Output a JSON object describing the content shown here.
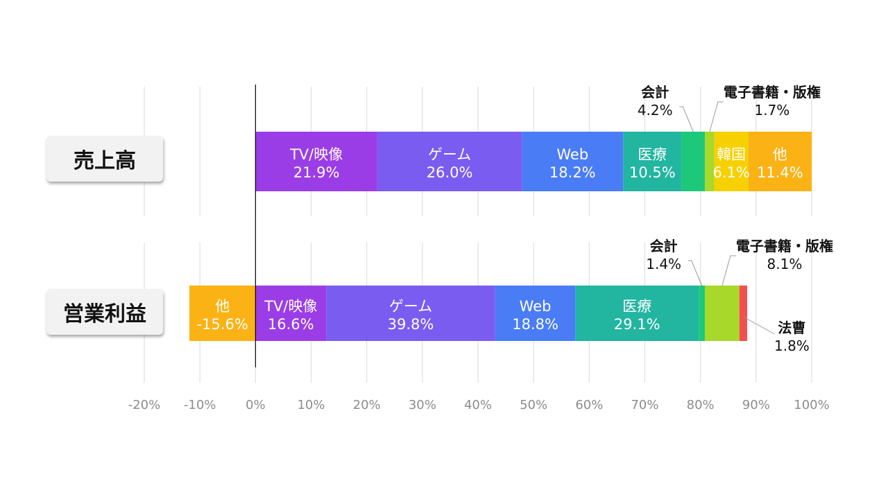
{
  "chart_data": {
    "type": "bar",
    "orientation": "horizontal",
    "stacked": true,
    "x_ticks": [
      "-20%",
      "-10%",
      "0%",
      "10%",
      "20%",
      "30%",
      "40%",
      "50%",
      "60%",
      "70%",
      "80%",
      "90%",
      "100%"
    ],
    "xlim": [
      -20,
      100
    ],
    "grid": true,
    "categories": [
      "売上高",
      "営業利益"
    ],
    "rows": [
      {
        "category": "売上高",
        "segments": [
          {
            "name": "TV/映像",
            "label": "21.9%",
            "value": 21.9,
            "color": "#9B3DE6",
            "label_pos": "inside"
          },
          {
            "name": "ゲーム",
            "label": "26.0%",
            "value": 26.0,
            "color": "#7A5CF0",
            "label_pos": "inside"
          },
          {
            "name": "Web",
            "label": "18.2%",
            "value": 18.2,
            "color": "#4A7CF6",
            "label_pos": "inside"
          },
          {
            "name": "医療",
            "label": "10.5%",
            "value": 10.5,
            "color": "#22B5A0",
            "label_pos": "inside"
          },
          {
            "name": "会計",
            "label": "4.2%",
            "value": 4.2,
            "color": "#1DC87A",
            "label_pos": "callout-left"
          },
          {
            "name": "電子書籍・版権",
            "label": "1.7%",
            "value": 1.7,
            "color": "#A8D82A",
            "label_pos": "callout-right"
          },
          {
            "name": "韓国",
            "label": "6.1%",
            "value": 6.1,
            "color": "#F7D000",
            "label_pos": "inside"
          },
          {
            "name": "他",
            "label": "11.4%",
            "value": 11.4,
            "color": "#FBB215",
            "label_pos": "inside"
          }
        ]
      },
      {
        "category": "営業利益",
        "segments": [
          {
            "name": "他",
            "label": "-15.6%",
            "value": -11.9,
            "color": "#FBB215",
            "label_pos": "inside"
          },
          {
            "name": "TV/映像",
            "label": "16.6%",
            "value": 12.7,
            "color": "#9B3DE6",
            "label_pos": "inside"
          },
          {
            "name": "ゲーム",
            "label": "39.8%",
            "value": 30.4,
            "color": "#7A5CF0",
            "label_pos": "inside"
          },
          {
            "name": "Web",
            "label": "18.8%",
            "value": 14.4,
            "color": "#4A7CF6",
            "label_pos": "inside"
          },
          {
            "name": "医療",
            "label": "29.1%",
            "value": 22.2,
            "color": "#22B5A0",
            "label_pos": "inside"
          },
          {
            "name": "会計",
            "label": "1.4%",
            "value": 1.1,
            "color": "#1DC87A",
            "label_pos": "callout-left"
          },
          {
            "name": "電子書籍・版権",
            "label": "8.1%",
            "value": 6.2,
            "color": "#A8D82A",
            "label_pos": "callout-right"
          },
          {
            "name": "法曹",
            "label": "1.8%",
            "value": 1.4,
            "color": "#F25050",
            "label_pos": "callout-below-right"
          }
        ]
      }
    ]
  }
}
